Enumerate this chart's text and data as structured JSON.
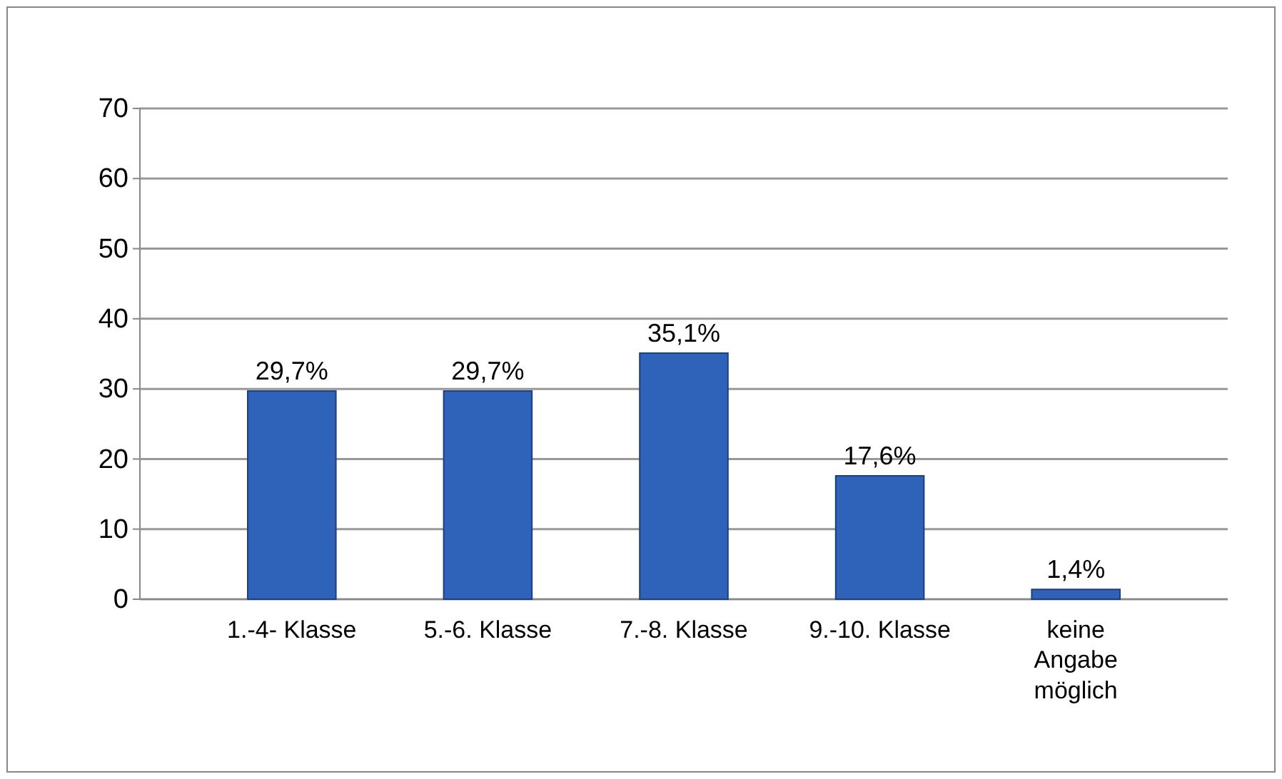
{
  "chart_data": {
    "type": "bar",
    "categories": [
      "1.-4- Klasse",
      "5.-6. Klasse",
      "7.-8. Klasse",
      "9.-10. Klasse",
      "keine Angabe möglich"
    ],
    "values": [
      29.7,
      29.7,
      35.1,
      17.6,
      1.4
    ],
    "value_labels": [
      "29,7%",
      "29,7%",
      "35,1%",
      "17,6%",
      "1,4%"
    ],
    "color": "#2f63b9",
    "ylim": [
      0,
      70
    ],
    "yticks": [
      0,
      10,
      20,
      30,
      40,
      50,
      60,
      70
    ],
    "grid": "y"
  }
}
